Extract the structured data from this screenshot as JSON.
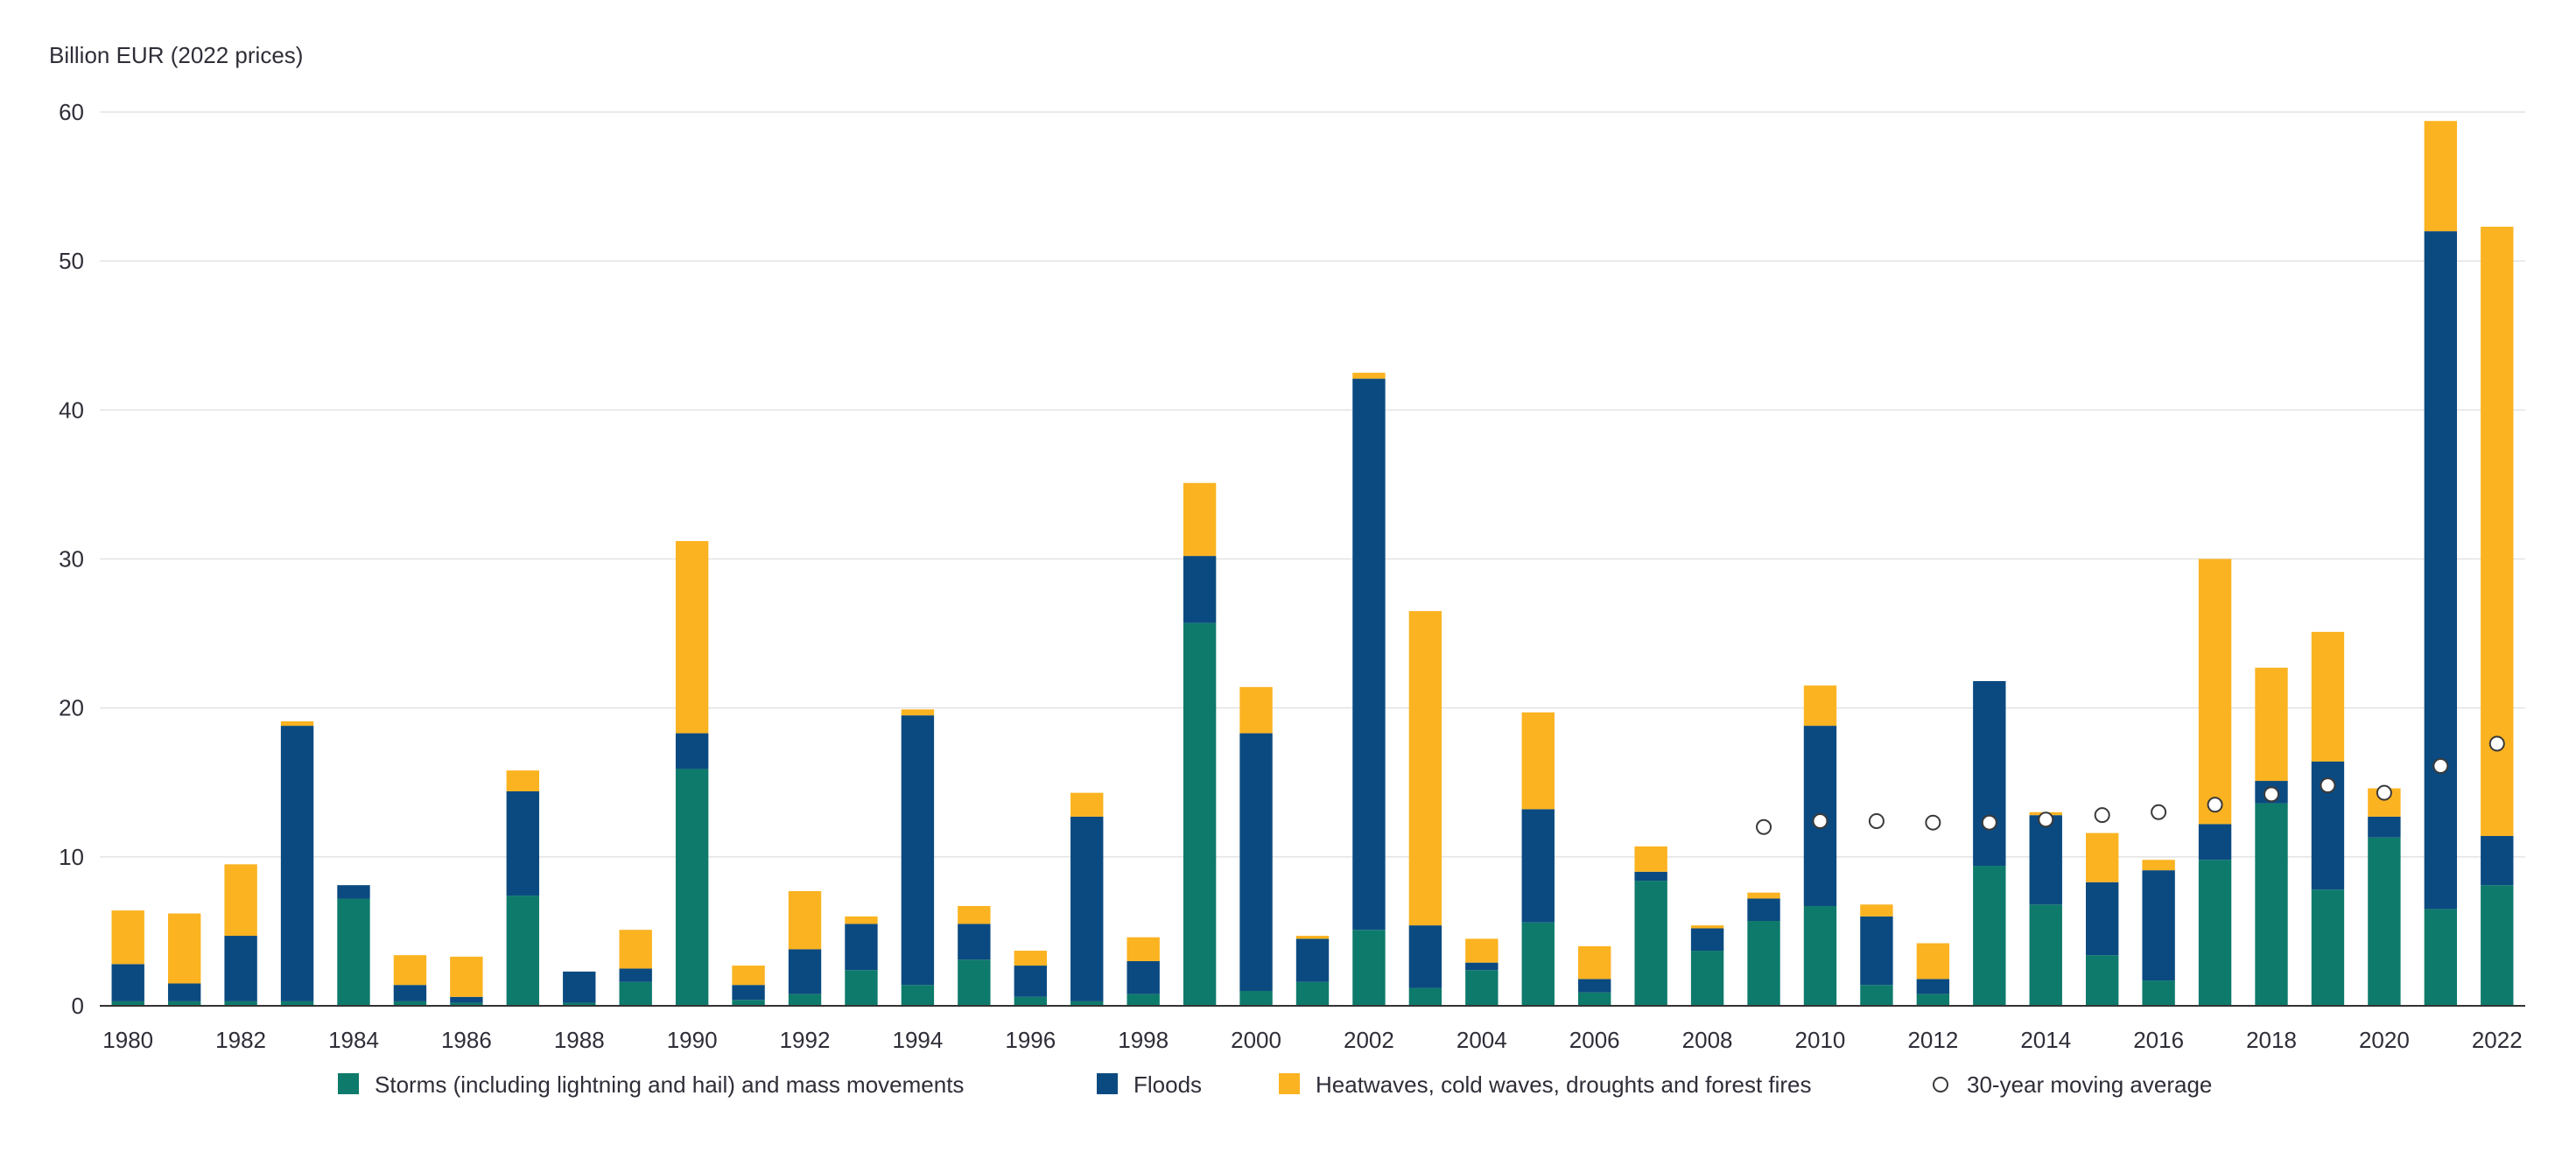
{
  "chart_data": {
    "type": "bar",
    "stacked": true,
    "ylabel": "Billion EUR (2022 prices)",
    "ylim": [
      0,
      60
    ],
    "yticks": [
      0,
      10,
      20,
      30,
      40,
      50,
      60
    ],
    "grid": true,
    "legend_position": "bottom",
    "x": [
      1980,
      1981,
      1982,
      1983,
      1984,
      1985,
      1986,
      1987,
      1988,
      1989,
      1990,
      1991,
      1992,
      1993,
      1994,
      1995,
      1996,
      1997,
      1998,
      1999,
      2000,
      2001,
      2002,
      2003,
      2004,
      2005,
      2006,
      2007,
      2008,
      2009,
      2010,
      2011,
      2012,
      2013,
      2014,
      2015,
      2016,
      2017,
      2018,
      2019,
      2020,
      2021,
      2022
    ],
    "xtick_labels": [
      "1980",
      "1982",
      "1984",
      "1986",
      "1988",
      "1990",
      "1992",
      "1994",
      "1996",
      "1998",
      "2000",
      "2002",
      "2004",
      "2006",
      "2008",
      "2010",
      "2012",
      "2014",
      "2016",
      "2018",
      "2020",
      "2022"
    ],
    "series": [
      {
        "name": "Storms (including lightning and hail) and mass movements",
        "color": "#0e7a6b",
        "values": [
          0.3,
          0.3,
          0.3,
          0.3,
          7.2,
          0.3,
          0.2,
          7.4,
          0.2,
          1.6,
          15.9,
          0.4,
          0.8,
          2.4,
          1.4,
          3.1,
          0.6,
          0.3,
          0.8,
          25.7,
          1.0,
          1.6,
          5.1,
          1.2,
          2.4,
          5.6,
          0.9,
          8.4,
          3.7,
          5.7,
          6.7,
          1.4,
          0.8,
          9.4,
          6.8,
          3.4,
          1.7,
          9.8,
          13.6,
          7.8,
          11.3,
          6.5,
          8.1
        ]
      },
      {
        "name": "Floods",
        "color": "#0b4a80",
        "values": [
          2.5,
          1.2,
          4.4,
          18.5,
          0.9,
          1.1,
          0.4,
          7.0,
          2.1,
          0.9,
          2.4,
          1.0,
          3.0,
          3.1,
          18.1,
          2.4,
          2.1,
          12.4,
          2.2,
          4.5,
          17.3,
          2.9,
          37.0,
          4.2,
          0.5,
          7.6,
          0.9,
          0.6,
          1.5,
          1.5,
          12.1,
          4.6,
          1.0,
          12.4,
          6.0,
          4.9,
          7.4,
          2.4,
          1.5,
          8.6,
          1.4,
          45.5,
          3.3
        ]
      },
      {
        "name": "Heatwaves, cold waves, droughts and forest fires",
        "color": "#fbb321",
        "values": [
          3.6,
          4.7,
          4.8,
          0.3,
          0.0,
          2.0,
          2.7,
          1.4,
          0.0,
          2.6,
          12.9,
          1.3,
          3.9,
          0.5,
          0.4,
          1.2,
          1.0,
          1.6,
          1.6,
          4.9,
          3.1,
          0.2,
          0.4,
          21.1,
          1.6,
          6.5,
          2.2,
          1.7,
          0.2,
          0.4,
          2.7,
          0.8,
          2.4,
          0.0,
          0.2,
          3.3,
          0.7,
          17.8,
          7.6,
          8.7,
          1.9,
          7.4,
          40.9
        ]
      },
      {
        "name": "30-year moving average",
        "type": "scatter",
        "x": [
          2009,
          2010,
          2011,
          2012,
          2013,
          2014,
          2015,
          2016,
          2017,
          2018,
          2019,
          2020,
          2021,
          2022
        ],
        "values": [
          12.0,
          12.4,
          12.4,
          12.3,
          12.3,
          12.5,
          12.8,
          13.0,
          13.5,
          14.2,
          14.8,
          14.3,
          16.1,
          17.6
        ]
      }
    ]
  }
}
